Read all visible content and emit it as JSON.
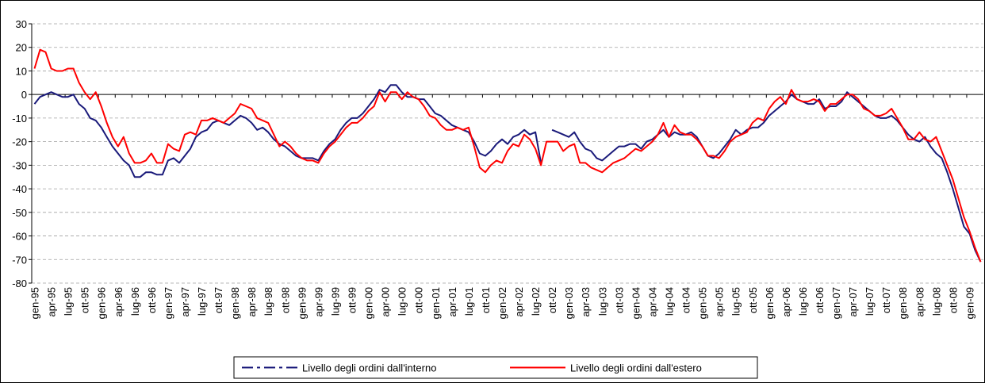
{
  "chart_data": {
    "type": "line",
    "categories": [
      "gen-95",
      null,
      null,
      "apr-95",
      null,
      null,
      "lug-95",
      null,
      null,
      "ott-95",
      null,
      null,
      "gen-96",
      null,
      null,
      "apr-96",
      null,
      null,
      "lug-96",
      null,
      null,
      "ott-96",
      null,
      null,
      "gen-97",
      null,
      null,
      "apr-97",
      null,
      null,
      "lug-97",
      null,
      null,
      "ott-97",
      null,
      null,
      "gen-98",
      null,
      null,
      "apr-98",
      null,
      null,
      "lug-98",
      null,
      null,
      "ott-98",
      null,
      null,
      "gen-99",
      null,
      null,
      "apr-99",
      null,
      null,
      "lug-99",
      null,
      null,
      "ott-99",
      null,
      null,
      "gen-00",
      null,
      null,
      "apr-00",
      null,
      null,
      "lug-00",
      null,
      null,
      "ott-00",
      null,
      null,
      "gen-01",
      null,
      null,
      "apr-01",
      null,
      null,
      "lug-01",
      null,
      null,
      "ott-01",
      null,
      null,
      "gen-02",
      null,
      null,
      "apr-02",
      null,
      null,
      "lug-02",
      null,
      null,
      "ott-02",
      null,
      null,
      "gen-03",
      null,
      null,
      "apr-03",
      null,
      null,
      "lug-03",
      null,
      null,
      "ott-03",
      null,
      null,
      "gen-04",
      null,
      null,
      "apr-04",
      null,
      null,
      "lug-04",
      null,
      null,
      "ott-04",
      null,
      null,
      "gen-05",
      null,
      null,
      "apr-05",
      null,
      null,
      "lug-05",
      null,
      null,
      "ott-05",
      null,
      null,
      "gen-06",
      null,
      null,
      "apr-06",
      null,
      null,
      "lug-06",
      null,
      null,
      "ott-06",
      null,
      null,
      "gen-07",
      null,
      null,
      "apr-07",
      null,
      null,
      "lug-07",
      null,
      null,
      "ott-07",
      null,
      null,
      "gen-08",
      null,
      null,
      "apr-08",
      null,
      null,
      "lug-08",
      null,
      null,
      "ott-08",
      null,
      null,
      "gen-09",
      null,
      null
    ],
    "series": [
      {
        "name": "Livello degli ordini dall'interno",
        "color": "#1a1a7a",
        "values": [
          -4,
          -1,
          0,
          1,
          0,
          -1,
          -1,
          0,
          -4,
          -6,
          -10,
          -11,
          -14,
          -18,
          -22,
          -25,
          -28,
          -30,
          -35,
          -35,
          -33,
          -33,
          -34,
          -34,
          -28,
          -27,
          -29,
          -26,
          -23,
          -18,
          -16,
          -15,
          -12,
          -11,
          -12,
          -13,
          -11,
          -9,
          -10,
          -12,
          -15,
          -14,
          -16,
          -19,
          -21,
          -22,
          -24,
          -26,
          -27,
          -27,
          -27,
          -28,
          -24,
          -21,
          -19,
          -15,
          -12,
          -10,
          -10,
          -8,
          -5,
          -2,
          2,
          1,
          4,
          4,
          1,
          -1,
          -1,
          -2,
          -2,
          -5,
          -8,
          -9,
          -11,
          -13,
          -14,
          -15,
          -16,
          -20,
          -25,
          -26,
          -24,
          -21,
          -19,
          -21,
          -18,
          -17,
          -15,
          -17,
          -16,
          -29,
          null,
          -15,
          -16,
          -17,
          -18,
          -16,
          -20,
          -23,
          -24,
          -27,
          -28,
          -26,
          -24,
          -22,
          -22,
          -21,
          -21,
          -23,
          -20,
          -19,
          -17,
          -15,
          -18,
          -16,
          -17,
          -17,
          -16,
          -18,
          -22,
          -26,
          -27,
          -25,
          -22,
          -19,
          -15,
          -17,
          -15,
          -14,
          -14,
          -12,
          -9,
          -7,
          -5,
          -3,
          0,
          -2,
          -3,
          -4,
          -4,
          -2,
          -6,
          -5,
          -5,
          -3,
          1,
          -1,
          -3,
          -5,
          -7,
          -9,
          -10,
          -10,
          -9,
          -11,
          -14,
          -17,
          -19,
          -20,
          -18,
          -22,
          -25,
          -27,
          -33,
          -40,
          -48,
          -56,
          -59,
          -66,
          -71
        ]
      },
      {
        "name": "Livello degli ordini dall'estero",
        "color": "#ff0000",
        "values": [
          11,
          19,
          18,
          11,
          10,
          10,
          11,
          11,
          5,
          1,
          -2,
          1,
          -5,
          -12,
          -18,
          -22,
          -18,
          -25,
          -29,
          -29,
          -28,
          -25,
          -29,
          -29,
          -21,
          -23,
          -24,
          -17,
          -16,
          -17,
          -11,
          -11,
          -10,
          -11,
          -12,
          -10,
          -8,
          -4,
          -5,
          -6,
          -10,
          -11,
          -12,
          -17,
          -22,
          -20,
          -22,
          -25,
          -27,
          -28,
          -28,
          -29,
          -25,
          -22,
          -20,
          -17,
          -14,
          -12,
          -12,
          -10,
          -7,
          -5,
          1,
          -3,
          1,
          1,
          -2,
          1,
          -1,
          -2,
          -5,
          -9,
          -10,
          -13,
          -15,
          -15,
          -14,
          -15,
          -14,
          -22,
          -31,
          -33,
          -30,
          -28,
          -29,
          -24,
          -21,
          -22,
          -17,
          -19,
          -23,
          -30,
          -20,
          -20,
          -20,
          -24,
          -22,
          -21,
          -29,
          -29,
          -31,
          -32,
          -33,
          -31,
          -29,
          -28,
          -27,
          -25,
          -23,
          -24,
          -22,
          -20,
          -17,
          -12,
          -18,
          -13,
          -16,
          -17,
          -17,
          -19,
          -22,
          -26,
          -26,
          -27,
          -24,
          -20,
          -18,
          -17,
          -16,
          -12,
          -10,
          -11,
          -6,
          -3,
          -1,
          -4,
          2,
          -2,
          -3,
          -3,
          -2,
          -3,
          -7,
          -4,
          -4,
          -2,
          0,
          0,
          -2,
          -6,
          -7,
          -9,
          -9,
          -8,
          -6,
          -10,
          -14,
          -19,
          -19,
          -16,
          -19,
          -20,
          -18,
          -24,
          -30,
          -36,
          -44,
          -52,
          -58,
          -65,
          -71
        ]
      }
    ],
    "ylim": [
      -80,
      30
    ],
    "yticks": [
      -80,
      -70,
      -60,
      -50,
      -40,
      -30,
      -20,
      -10,
      0,
      10,
      20,
      30
    ],
    "grid": true,
    "legend": "bottom"
  }
}
